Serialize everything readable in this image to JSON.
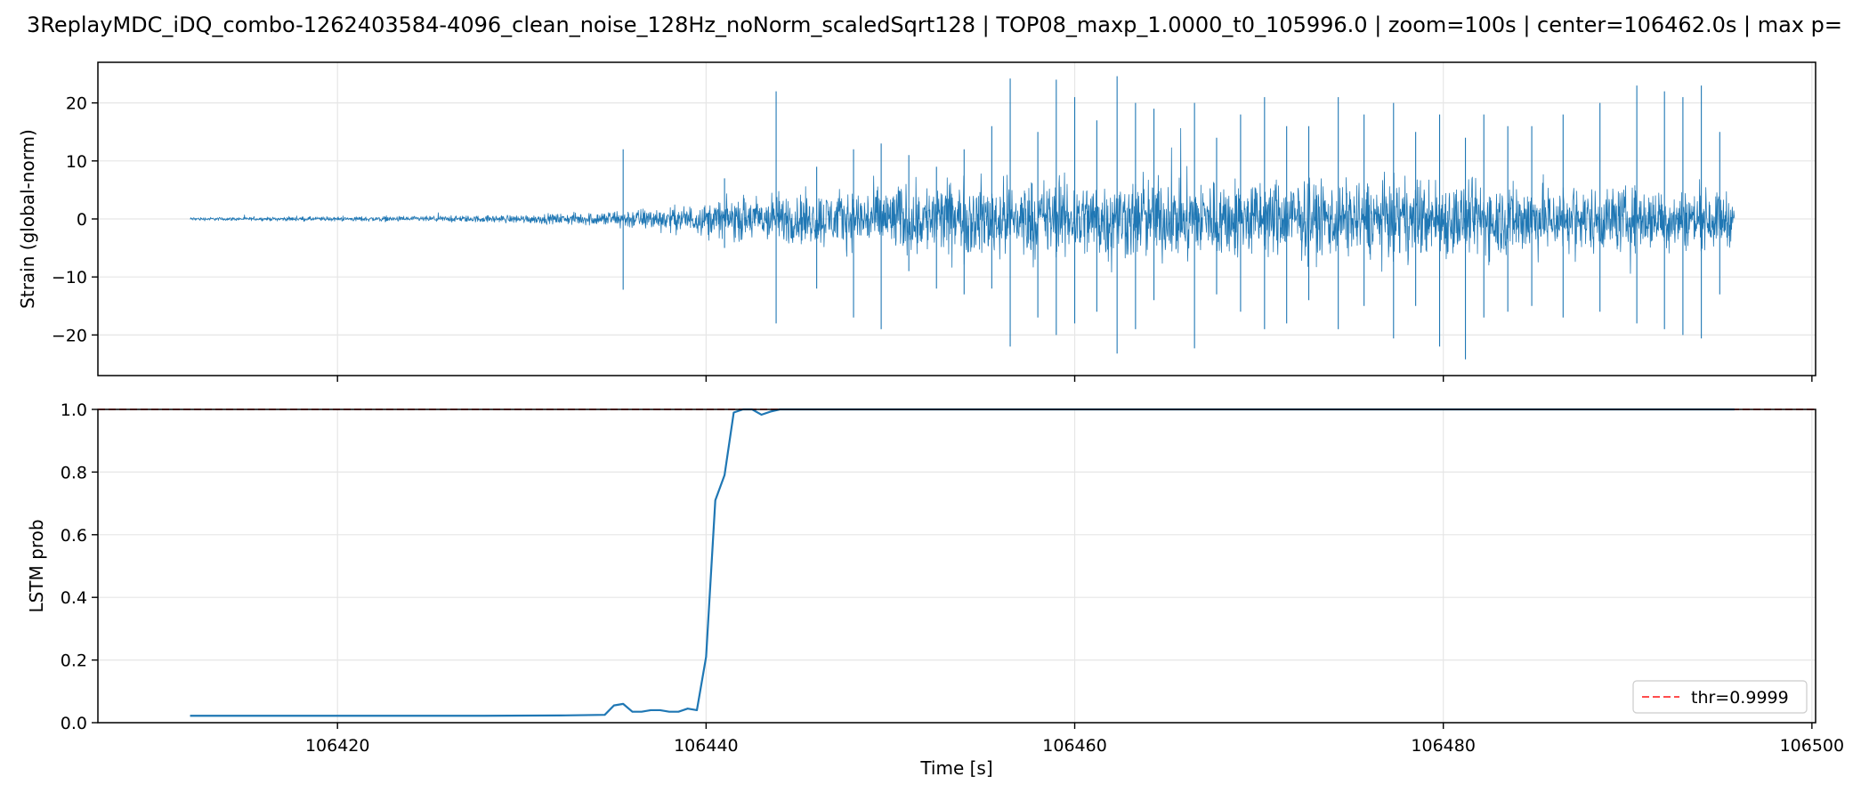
{
  "title": "3ReplayMDC_iDQ_combo-1262403584-4096_clean_noise_128Hz_noNorm_scaledSqrt128 | TOP08_maxp_1.0000_t0_105996.0 | zoom=100s | center=106462.0s | max p=",
  "colors": {
    "series": "#1f77b4",
    "threshold": "#ff4d4d",
    "grid": "#e6e6e6",
    "axes": "#000000"
  },
  "chart_data": [
    {
      "type": "line",
      "ylabel": "Strain (global-norm)",
      "xlim": [
        106407,
        106500.2
      ],
      "ylim": [
        -27,
        27
      ],
      "x_ticks": [
        106420,
        106440,
        106460,
        106480,
        106500
      ],
      "y_ticks": [
        -20,
        -10,
        0,
        10,
        20
      ],
      "y_tick_labels": [
        "−20",
        "−10",
        "0",
        "10",
        "20"
      ],
      "grid": true,
      "series": [
        {
          "description": "noise-like strain trace; envelope amplitude (half-width) sampled every 2 s",
          "x": [
            106412,
            106414,
            106416,
            106418,
            106420,
            106422,
            106424,
            106426,
            106428,
            106430,
            106432,
            106434,
            106436,
            106438,
            106440,
            106442,
            106444,
            106446,
            106448,
            106450,
            106452,
            106454,
            106456,
            106458,
            106460,
            106462,
            106464,
            106466,
            106468,
            106470,
            106472,
            106474,
            106476,
            106478,
            106480,
            106482,
            106484,
            106486,
            106488,
            106490,
            106492,
            106494,
            106495.8
          ],
          "envelope": [
            0.2,
            0.2,
            0.2,
            0.25,
            0.25,
            0.3,
            0.3,
            0.35,
            0.4,
            0.5,
            0.6,
            0.8,
            1.2,
            1.4,
            1.8,
            2.6,
            3.0,
            3.2,
            3.4,
            4.0,
            4.2,
            4.5,
            4.5,
            4.6,
            4.6,
            4.7,
            4.7,
            4.7,
            4.6,
            4.6,
            4.5,
            4.5,
            4.5,
            4.6,
            4.6,
            4.5,
            4.4,
            4.0,
            3.8,
            3.8,
            3.6,
            3.4,
            3.0
          ],
          "spikes": [
            {
              "x": 106435.5,
              "max": 12,
              "min": -12.2
            },
            {
              "x": 106441.0,
              "max": 7,
              "min": -5
            },
            {
              "x": 106443.8,
              "max": 22,
              "min": -18
            },
            {
              "x": 106446.0,
              "max": 9,
              "min": -12
            },
            {
              "x": 106448.0,
              "max": 12,
              "min": -17
            },
            {
              "x": 106449.5,
              "max": 13,
              "min": -19
            },
            {
              "x": 106451.0,
              "max": 11,
              "min": -9
            },
            {
              "x": 106452.5,
              "max": 9,
              "min": -12
            },
            {
              "x": 106454.0,
              "max": 12,
              "min": -13
            },
            {
              "x": 106455.5,
              "max": 16,
              "min": -12
            },
            {
              "x": 106456.5,
              "max": 24.2,
              "min": -22
            },
            {
              "x": 106458.0,
              "max": 15,
              "min": -17
            },
            {
              "x": 106459.0,
              "max": 24,
              "min": -20
            },
            {
              "x": 106460.0,
              "max": 21,
              "min": -18
            },
            {
              "x": 106461.2,
              "max": 17,
              "min": -16
            },
            {
              "x": 106462.3,
              "max": 24.6,
              "min": -23.2
            },
            {
              "x": 106463.3,
              "max": 20,
              "min": -19
            },
            {
              "x": 106464.3,
              "max": 19,
              "min": -14
            },
            {
              "x": 106466.5,
              "max": 20,
              "min": -22.3
            },
            {
              "x": 106467.7,
              "max": 14,
              "min": -13
            },
            {
              "x": 106469.0,
              "max": 18,
              "min": -16
            },
            {
              "x": 106470.3,
              "max": 21,
              "min": -19
            },
            {
              "x": 106471.5,
              "max": 16,
              "min": -18
            },
            {
              "x": 106472.7,
              "max": 16,
              "min": -14
            },
            {
              "x": 106474.3,
              "max": 21,
              "min": -19
            },
            {
              "x": 106475.7,
              "max": 18,
              "min": -15
            },
            {
              "x": 106477.3,
              "max": 20,
              "min": -20.6
            },
            {
              "x": 106478.5,
              "max": 15,
              "min": -15
            },
            {
              "x": 106479.8,
              "max": 18,
              "min": -22
            },
            {
              "x": 106481.2,
              "max": 14,
              "min": -24.2
            },
            {
              "x": 106482.2,
              "max": 18,
              "min": -17
            },
            {
              "x": 106483.5,
              "max": 16,
              "min": -16
            },
            {
              "x": 106484.8,
              "max": 16,
              "min": -15
            },
            {
              "x": 106486.5,
              "max": 18,
              "min": -17
            },
            {
              "x": 106488.5,
              "max": 20,
              "min": -16
            },
            {
              "x": 106490.5,
              "max": 23,
              "min": -18
            },
            {
              "x": 106492.0,
              "max": 22,
              "min": -19
            },
            {
              "x": 106493.0,
              "max": 21,
              "min": -20
            },
            {
              "x": 106494.0,
              "max": 23,
              "min": -20.6
            },
            {
              "x": 106495.0,
              "max": 15,
              "min": -13
            }
          ]
        }
      ]
    },
    {
      "type": "line",
      "xlabel": "Time [s]",
      "ylabel": "LSTM prob",
      "xlim": [
        106407,
        106500.2
      ],
      "ylim": [
        0,
        1
      ],
      "x_ticks": [
        106420,
        106440,
        106460,
        106480,
        106500
      ],
      "x_tick_labels": [
        "106420",
        "106440",
        "106460",
        "106480",
        "106500"
      ],
      "y_ticks": [
        0.0,
        0.2,
        0.4,
        0.6,
        0.8,
        1.0
      ],
      "y_tick_labels": [
        "0.0",
        "0.2",
        "0.4",
        "0.6",
        "0.8",
        "1.0"
      ],
      "grid": true,
      "threshold": 0.9999,
      "legend": {
        "position": "lower-right",
        "entries": [
          "thr=0.9999"
        ]
      },
      "series": [
        {
          "x": [
            106412,
            106420,
            106428,
            106432,
            106434.5,
            106435,
            106435.5,
            106436,
            106436.5,
            106437,
            106437.5,
            106438,
            106438.5,
            106439,
            106439.5,
            106440,
            106440.5,
            106441,
            106441.5,
            106442,
            106442.5,
            106443,
            106443.5,
            106444,
            106446,
            106460,
            106480,
            106495.8
          ],
          "y": [
            0.022,
            0.022,
            0.022,
            0.023,
            0.025,
            0.055,
            0.06,
            0.035,
            0.035,
            0.04,
            0.04,
            0.035,
            0.035,
            0.045,
            0.04,
            0.21,
            0.71,
            0.79,
            0.99,
            1.0,
            1.0,
            0.983,
            0.993,
            1.0,
            1.0,
            1.0,
            1.0,
            1.0
          ]
        }
      ]
    }
  ]
}
